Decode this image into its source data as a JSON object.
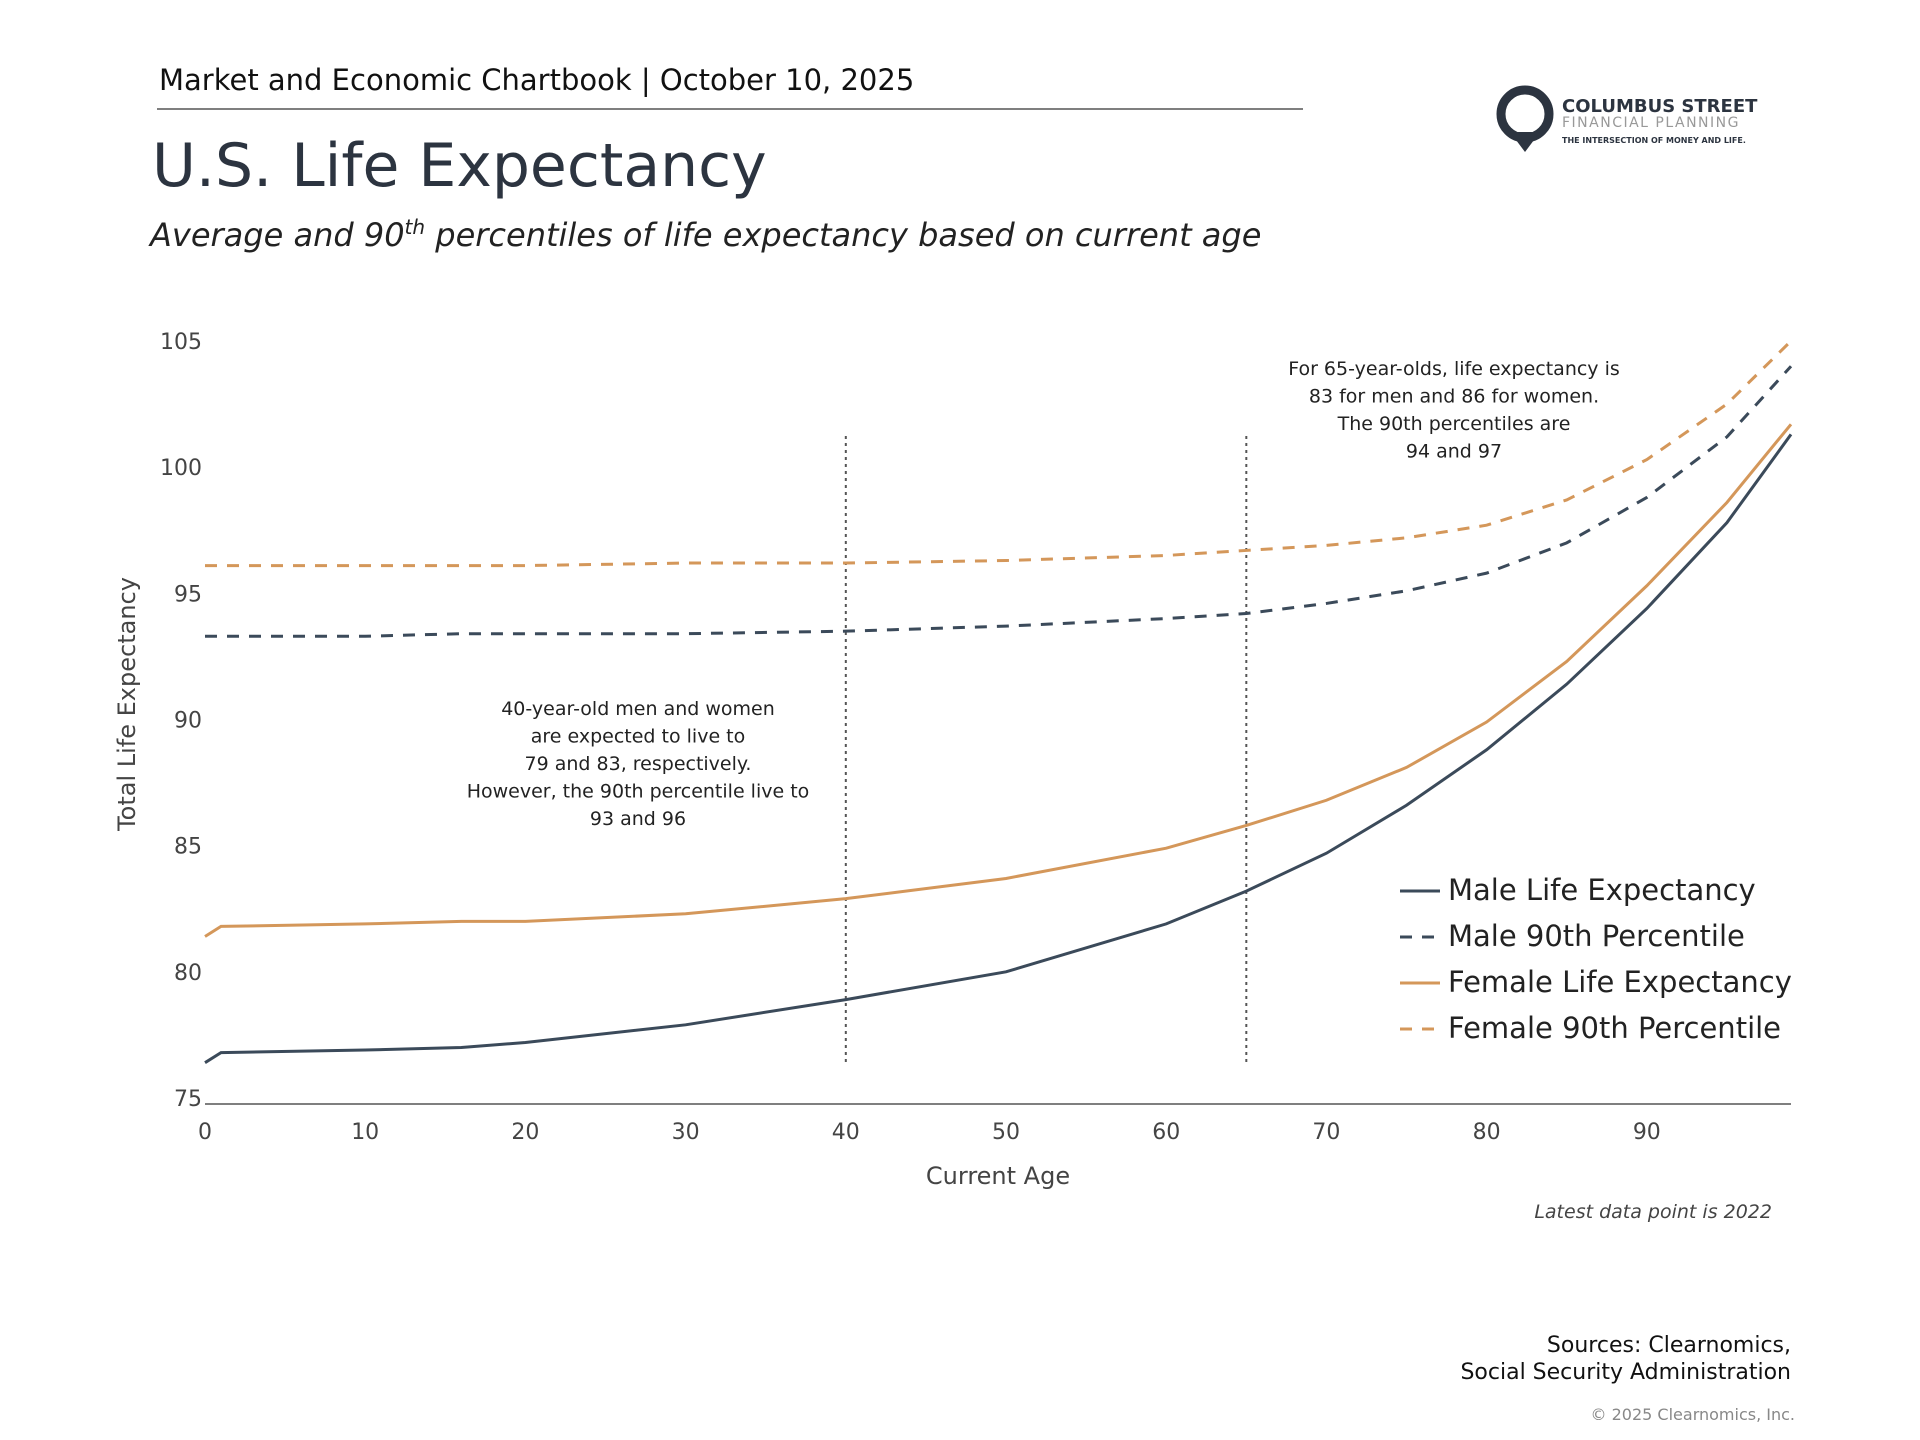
{
  "page": {
    "header": "Market and Economic Chartbook | October 10, 2025",
    "logo": {
      "name": "COLUMBUS STREET",
      "subname": "FINANCIAL PLANNING",
      "tagline": "THE INTERSECTION OF MONEY AND LIFE."
    },
    "sources": [
      "Sources: Clearnomics,",
      "Social Security Administration"
    ],
    "copyright": "© 2025 Clearnomics, Inc."
  },
  "chart_data": {
    "type": "line",
    "title": "U.S. Life Expectancy",
    "subtitle": [
      "Average and 90",
      "th",
      " percentiles of life expectancy based on current age"
    ],
    "x_label": "Current Age",
    "y_label": "Total Life Expectancy",
    "note": "Latest data point is 2022",
    "x": [
      0,
      1,
      10,
      16,
      20,
      30,
      40,
      50,
      60,
      65,
      70,
      75,
      80,
      85,
      90,
      95,
      99
    ],
    "series": [
      {
        "name": "Male Life Expectancy",
        "color": "#3b4a5a",
        "dash": false,
        "values": [
          76.4,
          76.8,
          76.9,
          77.0,
          77.2,
          77.9,
          78.9,
          80.0,
          81.9,
          83.2,
          84.7,
          86.6,
          88.8,
          91.4,
          94.4,
          97.8,
          101.3
        ]
      },
      {
        "name": "Male 90th Percentile",
        "color": "#3b4a5a",
        "dash": true,
        "values": [
          93.3,
          93.3,
          93.3,
          93.4,
          93.4,
          93.4,
          93.5,
          93.7,
          94.0,
          94.2,
          94.6,
          95.1,
          95.8,
          97.0,
          98.8,
          101.2,
          104.0
        ]
      },
      {
        "name": "Female Life Expectancy",
        "color": "#d4975a",
        "dash": false,
        "values": [
          81.4,
          81.8,
          81.9,
          82.0,
          82.0,
          82.3,
          82.9,
          83.7,
          84.9,
          85.8,
          86.8,
          88.1,
          89.9,
          92.3,
          95.3,
          98.6,
          101.7
        ]
      },
      {
        "name": "Female 90th Percentile",
        "color": "#d4975a",
        "dash": true,
        "values": [
          96.1,
          96.1,
          96.1,
          96.1,
          96.1,
          96.2,
          96.2,
          96.3,
          96.5,
          96.7,
          96.9,
          97.2,
          97.7,
          98.7,
          100.3,
          102.5,
          105.0
        ]
      }
    ],
    "vlines": [
      40,
      65
    ],
    "annotations": [
      [
        "40-year-old men and women",
        "are expected to live to",
        "79 and 83, respectively.",
        "However, the 90th percentile live to",
        "93 and 96"
      ],
      [
        "For 65-year-olds, life expectancy is",
        "83 for men and 86 for women.",
        "The 90th percentiles are",
        "94 and 97"
      ]
    ],
    "xlim": [
      0,
      99
    ],
    "xticks": [
      0,
      10,
      20,
      30,
      40,
      50,
      60,
      70,
      80,
      90
    ],
    "ylim": [
      75,
      105
    ],
    "yticks": [
      75,
      80,
      85,
      90,
      95,
      100,
      105
    ],
    "legend": "lower right"
  }
}
